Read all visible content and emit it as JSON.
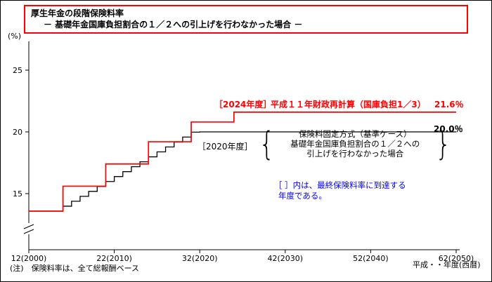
{
  "title": {
    "line1": "厚生年金の段階保険料率",
    "line2": "－ 基礎年金国庫負担割合の１／２への引上げを行わなかった場合 －"
  },
  "axes": {
    "y_unit": "(%)",
    "x_unit": "平成・・年度(西暦)"
  },
  "annotations": {
    "red_year": "［2024年度］",
    "red_label": "平成１１年財政再計算（国庫負担1／3）",
    "red_value": "21.6％",
    "red_color": "#ff0000",
    "black_year": "［2020年度］",
    "black_line1": "保険料固定方式（基準ケース）",
    "black_line2": "基礎年金国庫負担割合の１／２への",
    "black_line3": "引上げを行わなかった場合",
    "black_value": "20.0％",
    "brace_left": "{",
    "brace_right": "}",
    "blue_line1": "［ ］内は、最終保険料率に到達する",
    "blue_line2": "年度である。",
    "blue_color": "#0000ff"
  },
  "footnote": "(注)　保険料率は、全て総報酬ベース",
  "chart_data": {
    "type": "line",
    "subtype": "step",
    "title": "厚生年金の段階保険料率 － 基礎年金国庫負担割合の１／２への引上げを行わなかった場合 －",
    "ylabel": "(%)",
    "xlabel": "平成・・年度(西暦)",
    "y_ticks": [
      15,
      20,
      25
    ],
    "x_range": [
      2000,
      2050
    ],
    "axis_break_on_y": true,
    "x_ticks": [
      {
        "year": 2000,
        "label": "12(2000)"
      },
      {
        "year": 2010,
        "label": "22(2010)"
      },
      {
        "year": 2020,
        "label": "32(2020)"
      },
      {
        "year": 2030,
        "label": "42(2030)"
      },
      {
        "year": 2040,
        "label": "52(2040)"
      },
      {
        "year": 2050,
        "label": "62(2050)"
      }
    ],
    "series": [
      {
        "name": "保険料固定方式（基準ケース）基礎年金国庫負担割合の１／２への引上げを行わなかった場合",
        "color": "#000000",
        "width": 1.3,
        "final_value": 20.0,
        "final_year_label": "2020年度",
        "points": [
          [
            2000,
            13.58
          ],
          [
            2004,
            13.98
          ],
          [
            2005,
            14.38
          ],
          [
            2006,
            14.78
          ],
          [
            2007,
            15.18
          ],
          [
            2008,
            15.58
          ],
          [
            2009,
            15.98
          ],
          [
            2010,
            16.38
          ],
          [
            2011,
            16.78
          ],
          [
            2012,
            17.18
          ],
          [
            2013,
            17.58
          ],
          [
            2014,
            17.98
          ],
          [
            2015,
            18.38
          ],
          [
            2016,
            18.78
          ],
          [
            2017,
            19.18
          ],
          [
            2018,
            19.58
          ],
          [
            2019,
            19.98
          ],
          [
            2020,
            20.0
          ]
        ]
      },
      {
        "name": "平成１１年財政再計算（国庫負担1／3）",
        "color": "#ff0000",
        "width": 1.7,
        "final_value": 21.6,
        "final_year_label": "2024年度",
        "points": [
          [
            2000,
            13.58
          ],
          [
            2004,
            15.6
          ],
          [
            2009,
            17.4
          ],
          [
            2014,
            19.2
          ],
          [
            2019,
            20.8
          ],
          [
            2024,
            21.6
          ]
        ]
      }
    ]
  }
}
